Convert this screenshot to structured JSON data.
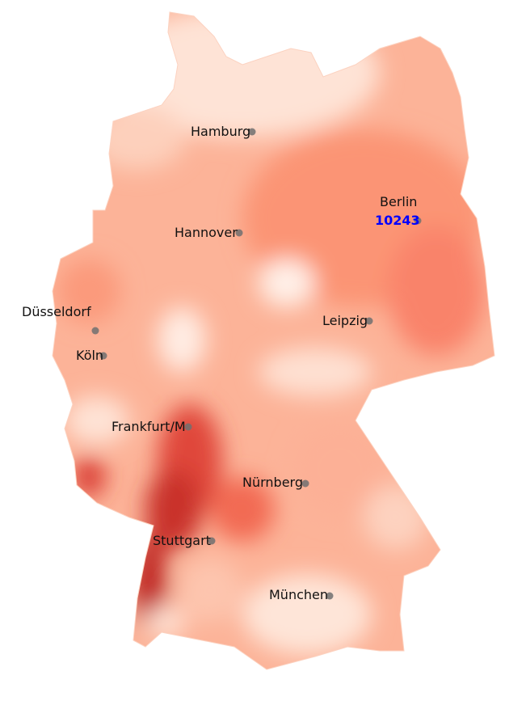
{
  "map": {
    "colormap": "Reds",
    "colors": {
      "low": "#fff5f0",
      "mid": "#fca082",
      "high": "#b11218",
      "marker": "#707070",
      "highlight": "#0000ff"
    },
    "cities": [
      {
        "name": "Hamburg"
      },
      {
        "name": "Hannover"
      },
      {
        "name": "Berlin"
      },
      {
        "name": "Düsseldorf"
      },
      {
        "name": "Köln"
      },
      {
        "name": "Leipzig"
      },
      {
        "name": "Frankfurt/M"
      },
      {
        "name": "Nürnberg"
      },
      {
        "name": "Stuttgart"
      },
      {
        "name": "München"
      }
    ],
    "highlight_label": "10243"
  }
}
